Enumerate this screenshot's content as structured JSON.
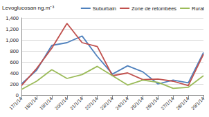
{
  "chart_data": {
    "type": "line",
    "y_label": "Levoglucosan ng.m⁻³",
    "categories": [
      "17/1/14",
      "18/1/14",
      "19/1/14",
      "20/1/14",
      "21/1/14",
      "22/1/14",
      "23/1/14",
      "24/1/14",
      "25/1/14",
      "26/1/14",
      "27/1/14",
      "28/1/14",
      "29/1/14"
    ],
    "series": [
      {
        "name": "Suburbain",
        "color": "#4f81bd",
        "values": [
          200,
          450,
          900,
          950,
          1070,
          700,
          380,
          530,
          420,
          200,
          270,
          220,
          770
        ]
      },
      {
        "name": "Zone de retombées",
        "color": "#c0504d",
        "values": [
          170,
          480,
          850,
          1300,
          950,
          880,
          350,
          400,
          280,
          290,
          250,
          170,
          740
        ]
      },
      {
        "name": "Rural",
        "color": "#9bbb59",
        "values": [
          100,
          250,
          460,
          300,
          370,
          520,
          350,
          180,
          270,
          230,
          120,
          140,
          350
        ]
      }
    ],
    "ylim": [
      0,
      1400
    ],
    "yticks": [
      0,
      200,
      400,
      600,
      800,
      1000,
      1200,
      1400
    ],
    "grid": true,
    "legend": "top"
  }
}
